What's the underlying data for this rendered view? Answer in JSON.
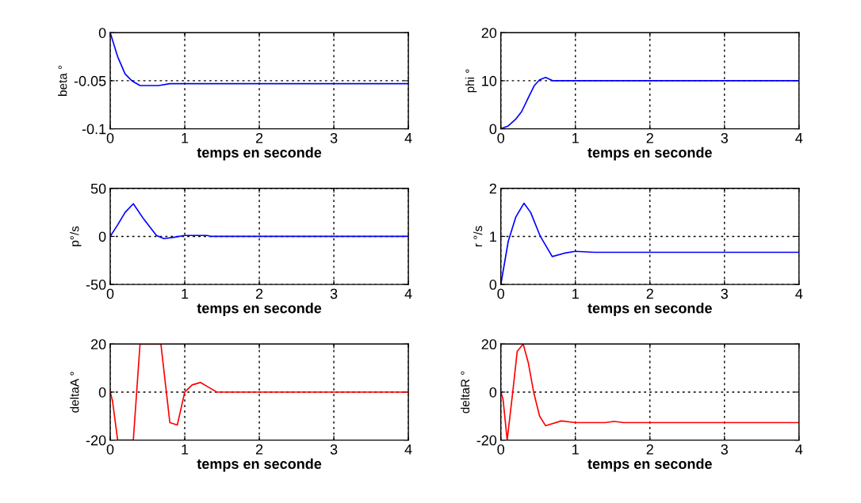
{
  "chart_data": [
    {
      "type": "line",
      "xlabel": "temps en seconde",
      "ylabel": "beta °",
      "xlim": [
        0,
        4
      ],
      "ylim": [
        -0.1,
        0
      ],
      "xticks": [
        0,
        1,
        2,
        3,
        4
      ],
      "yticks": [
        -0.1,
        -0.05,
        0
      ],
      "grid": true,
      "series": [
        {
          "color": "#0000ff",
          "x": [
            0,
            0.1,
            0.2,
            0.29,
            0.4,
            0.65,
            0.8,
            1,
            2,
            3,
            4
          ],
          "values": [
            0,
            -0.025,
            -0.043,
            -0.05,
            -0.055,
            -0.055,
            -0.053,
            -0.053,
            -0.053,
            -0.053,
            -0.053
          ]
        }
      ]
    },
    {
      "type": "line",
      "xlabel": "temps en seconde",
      "ylabel": "phi °",
      "xlim": [
        0,
        4
      ],
      "ylim": [
        0,
        20
      ],
      "xticks": [
        0,
        1,
        2,
        3,
        4
      ],
      "yticks": [
        0,
        10,
        20
      ],
      "grid": true,
      "series": [
        {
          "color": "#0000ff",
          "x": [
            0,
            0.1,
            0.2,
            0.28,
            0.37,
            0.45,
            0.52,
            0.6,
            0.7,
            1,
            2,
            3,
            4
          ],
          "values": [
            0,
            0.6,
            2,
            3.6,
            6.5,
            9,
            10.2,
            10.7,
            10,
            10,
            10,
            10,
            10
          ]
        }
      ]
    },
    {
      "type": "line",
      "xlabel": "temps en seconde",
      "ylabel": "p°/s",
      "xlim": [
        0,
        4
      ],
      "ylim": [
        -50,
        50
      ],
      "xticks": [
        0,
        1,
        2,
        3,
        4
      ],
      "yticks": [
        -50,
        0,
        50
      ],
      "grid": true,
      "series": [
        {
          "color": "#0000ff",
          "x": [
            0,
            0.1,
            0.2,
            0.31,
            0.45,
            0.62,
            0.72,
            0.85,
            1.0,
            1.3,
            1.35,
            2,
            3,
            4
          ],
          "values": [
            0,
            12,
            25,
            34,
            18,
            1,
            -2.3,
            -1,
            1,
            1,
            0,
            0,
            0,
            0
          ]
        }
      ]
    },
    {
      "type": "line",
      "xlabel": "temps en seconde",
      "ylabel": "r °/s",
      "xlim": [
        0,
        4
      ],
      "ylim": [
        0,
        2
      ],
      "xticks": [
        0,
        1,
        2,
        3,
        4
      ],
      "yticks": [
        0,
        1,
        2
      ],
      "grid": true,
      "series": [
        {
          "color": "#0000ff",
          "x": [
            0,
            0.1,
            0.2,
            0.31,
            0.4,
            0.53,
            0.69,
            0.85,
            1.0,
            1.25,
            2,
            3,
            4
          ],
          "values": [
            0,
            0.9,
            1.4,
            1.69,
            1.5,
            1.0,
            0.58,
            0.65,
            0.69,
            0.67,
            0.67,
            0.67,
            0.67
          ]
        }
      ]
    },
    {
      "type": "line",
      "xlabel": "temps en seconde",
      "ylabel": "deltaA °",
      "xlim": [
        0,
        4
      ],
      "ylim": [
        -20,
        20
      ],
      "xticks": [
        0,
        1,
        2,
        3,
        4
      ],
      "yticks": [
        -20,
        0,
        20
      ],
      "grid": true,
      "series": [
        {
          "color": "#ff0000",
          "x": [
            0,
            0.03,
            0.1,
            0.31,
            0.4,
            0.68,
            0.8,
            0.9,
            1.0,
            1.1,
            1.21,
            1.32,
            1.43,
            2,
            3,
            4
          ],
          "values": [
            0,
            -3.5,
            -20,
            -20,
            20,
            20,
            -12.7,
            -13.7,
            0,
            3,
            4,
            2,
            0,
            0,
            0,
            0
          ]
        }
      ]
    },
    {
      "type": "line",
      "xlabel": "temps en seconde",
      "ylabel": "deltaR °",
      "xlim": [
        0,
        4
      ],
      "ylim": [
        -20,
        20
      ],
      "xticks": [
        0,
        1,
        2,
        3,
        4
      ],
      "yticks": [
        -20,
        0,
        20
      ],
      "grid": true,
      "series": [
        {
          "color": "#ff0000",
          "x": [
            0,
            0.03,
            0.085,
            0.16,
            0.22,
            0.3,
            0.37,
            0.44,
            0.52,
            0.6,
            0.81,
            1,
            1.4,
            1.52,
            1.65,
            2,
            3,
            4
          ],
          "values": [
            0,
            -3,
            -20,
            0,
            17,
            20,
            12,
            0,
            -10,
            -14,
            -12,
            -12.7,
            -12.7,
            -12.2,
            -12.7,
            -12.7,
            -12.7,
            -12.7
          ]
        }
      ]
    }
  ]
}
